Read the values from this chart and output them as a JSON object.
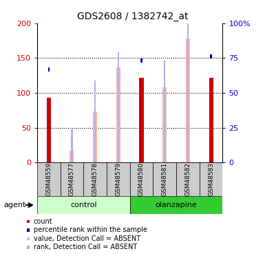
{
  "title": "GDS2608 / 1382742_at",
  "samples": [
    "GSM48559",
    "GSM48577",
    "GSM48578",
    "GSM48579",
    "GSM48580",
    "GSM48581",
    "GSM48582",
    "GSM48583"
  ],
  "count_values": [
    93,
    0,
    0,
    0,
    122,
    0,
    0,
    122
  ],
  "percentile_values": [
    67,
    0,
    0,
    0,
    73,
    0,
    0,
    76
  ],
  "absent_value_values": [
    0,
    17,
    73,
    137,
    0,
    108,
    178,
    0
  ],
  "absent_rank_values": [
    0,
    24,
    59,
    79,
    0,
    73,
    101,
    0
  ],
  "color_count": "#cc0000",
  "color_percentile": "#0000bb",
  "color_absent_value": "#ffb0b0",
  "color_absent_rank": "#b0b0e0",
  "color_control_light": "#ccffcc",
  "color_olanzapine_dark": "#33cc33",
  "color_sample_bg": "#cccccc",
  "ylim_left": [
    0,
    200
  ],
  "ylim_right": [
    0,
    100
  ],
  "yticks_left": [
    0,
    50,
    100,
    150,
    200
  ],
  "yticks_right": [
    0,
    25,
    50,
    75,
    100
  ],
  "ytick_labels_left": [
    "0",
    "50",
    "100",
    "150",
    "200"
  ],
  "ytick_labels_right": [
    "0",
    "25",
    "50",
    "75",
    "100%"
  ],
  "bar_width": 0.18,
  "absent_bar_width": 0.18,
  "small_bar_width": 0.07,
  "group_label_control": "control",
  "group_label_olanzapine": "olanzapine",
  "agent_label": "agent"
}
